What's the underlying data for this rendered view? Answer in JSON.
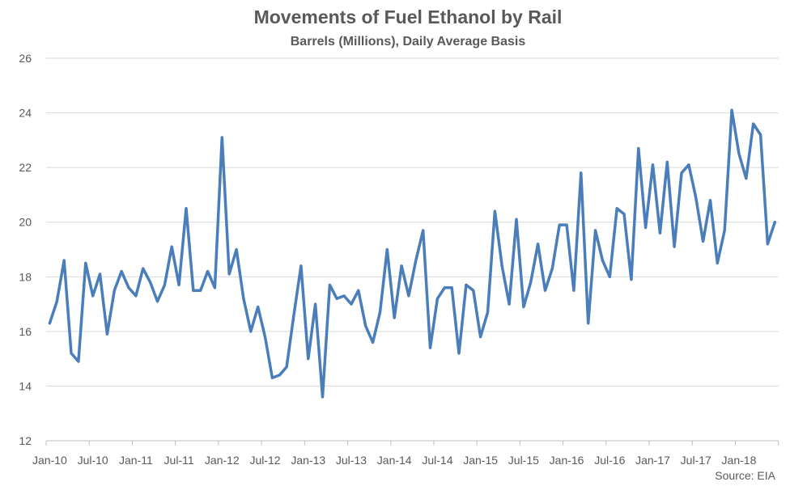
{
  "chart_data": {
    "type": "line",
    "title": "Movements of Fuel Ethanol by Rail",
    "subtitle": "Barrels (Millions), Daily Average Basis",
    "source": "Source: EIA",
    "ylim": [
      12,
      26
    ],
    "yticks": [
      12,
      14,
      16,
      18,
      20,
      22,
      24,
      26
    ],
    "xticks": [
      "Jan-10",
      "Jul-10",
      "Jan-11",
      "Jul-11",
      "Jan-12",
      "Jul-12",
      "Jan-13",
      "Jul-13",
      "Jan-14",
      "Jul-14",
      "Jan-15",
      "Jul-15",
      "Jan-16",
      "Jul-16",
      "Jan-17",
      "Jul-17",
      "Jan-18"
    ],
    "grid": true,
    "line_color": "#4A7EBB",
    "series": [
      {
        "x_start": "2010-01",
        "values": [
          16.3,
          17.1,
          18.6,
          15.2,
          14.9,
          18.5,
          17.3,
          18.1,
          15.9,
          17.5,
          18.2,
          17.6,
          17.3,
          18.3,
          17.8,
          17.1,
          17.7,
          19.1,
          17.7,
          20.5,
          17.5,
          17.5,
          18.2,
          17.6,
          23.1,
          18.1,
          19.0,
          17.2,
          16.0,
          16.9,
          15.8,
          14.3,
          14.4,
          14.7,
          16.6,
          18.4,
          15.0,
          17.0,
          13.6,
          17.7,
          17.2,
          17.3,
          17.0,
          17.5,
          16.2,
          15.6,
          16.7,
          19.0,
          16.5,
          18.4,
          17.3,
          18.6,
          19.7,
          15.4,
          17.2,
          17.6,
          17.6,
          15.2,
          17.7,
          17.5,
          15.8,
          16.7,
          20.4,
          18.4,
          17.0,
          20.1,
          16.9,
          17.8,
          19.2,
          17.5,
          18.3,
          19.9,
          19.9,
          17.5,
          21.8,
          16.3,
          19.7,
          18.6,
          18.0,
          20.5,
          20.3,
          17.9,
          22.7,
          19.8,
          22.1,
          19.6,
          22.2,
          19.1,
          21.8,
          22.1,
          20.9,
          19.3,
          20.8,
          18.5,
          19.7,
          24.1,
          22.5,
          21.6,
          23.6,
          23.2,
          19.2,
          20.0
        ]
      }
    ]
  }
}
